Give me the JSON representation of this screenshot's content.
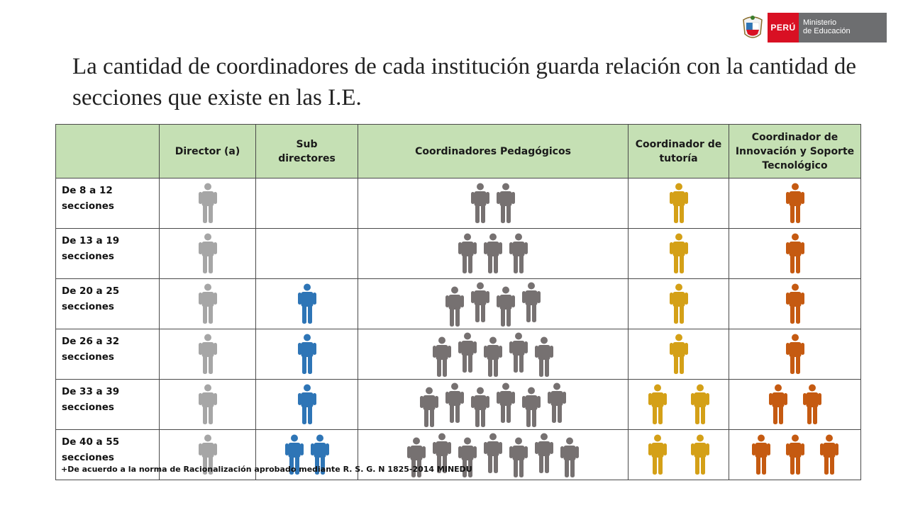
{
  "logo": {
    "country": "PERÚ",
    "ministry_line1": "Ministerio",
    "ministry_line2": "de Educación",
    "colors": {
      "red": "#d91023",
      "gray": "#6d6e70"
    }
  },
  "title": "La cantidad de coordinadores de cada institución guarda relación con la cantidad de secciones que existe en las I.E.",
  "table": {
    "headers": [
      "",
      "Director (a)",
      "Sub\ndirectores",
      "Coordinadores Pedagógicos",
      "Coordinador de\ntutoría",
      "Coordinador de\nInnovación y Soporte\nTecnológico"
    ],
    "colors": {
      "director": "#a6a6a6",
      "subdirector": "#2e75b6",
      "pedagogico": "#767171",
      "tutoria": "#d4a017",
      "innovacion": "#c55a11",
      "header_bg": "#c5e0b4"
    },
    "rows": [
      {
        "label": "De 8 a 12\nsecciones",
        "counts": [
          1,
          0,
          2,
          1,
          1
        ]
      },
      {
        "label": "De 13 a 19\nsecciones",
        "counts": [
          1,
          0,
          3,
          1,
          1
        ]
      },
      {
        "label": "De 20 a 25\nsecciones",
        "counts": [
          1,
          1,
          4,
          1,
          1
        ]
      },
      {
        "label": "De 26 a 32\nsecciones",
        "counts": [
          1,
          1,
          5,
          1,
          1
        ]
      },
      {
        "label": "De 33 a 39\nsecciones",
        "counts": [
          1,
          1,
          6,
          2,
          2
        ]
      },
      {
        "label": "De 40 a 55\nsecciones",
        "counts": [
          1,
          2,
          7,
          2,
          3
        ]
      }
    ]
  },
  "footnote": "+De acuerdo a la norma de Racionalización aprobado mediante R. S. G. N 1825-2014  MINEDU"
}
